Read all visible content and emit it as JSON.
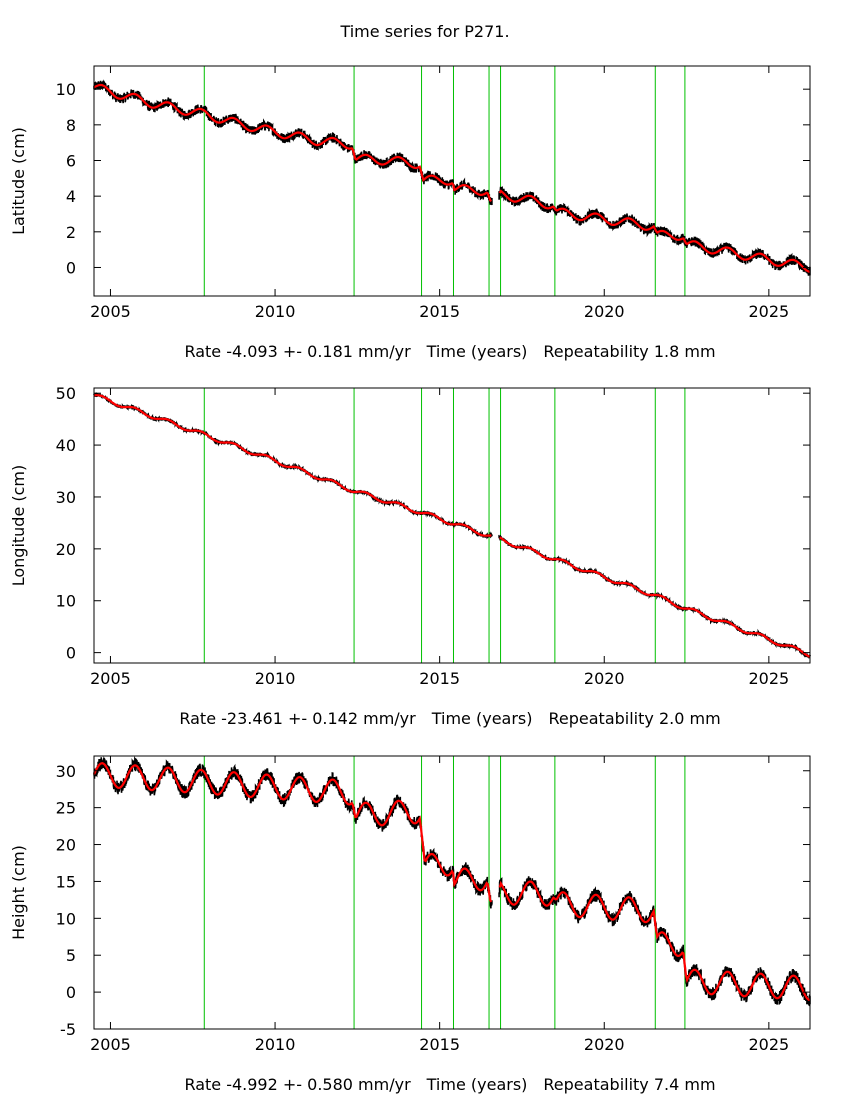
{
  "title": "Time series for P271.",
  "colors": {
    "data": "#000000",
    "model": "#ff0000",
    "event_lines": "#00c000"
  },
  "chart_data": [
    {
      "type": "line",
      "id": "latitude",
      "ylabel": "Latitude (cm)",
      "xlabel": "Time (years)",
      "rate_label": "Rate -4.093 +- 0.181 mm/yr",
      "repeatability_label": "Repeatability 1.8 mm",
      "xlim": [
        2004.5,
        2026.25
      ],
      "ylim": [
        -1.6,
        11.3
      ],
      "xticks": [
        2005,
        2010,
        2015,
        2020,
        2025
      ],
      "yticks": [
        0,
        2,
        4,
        6,
        8,
        10
      ],
      "event_lines": [
        2007.85,
        2012.4,
        2014.45,
        2015.42,
        2016.5,
        2016.85,
        2018.5,
        2021.55,
        2022.45
      ],
      "noise": 0.28,
      "series": [
        {
          "name": "model",
          "points": [
            [
              2004.5,
              10.1
            ],
            [
              2005.5,
              9.6
            ],
            [
              2006.5,
              9.1
            ],
            [
              2007.85,
              8.6
            ],
            [
              2008.8,
              8.1
            ],
            [
              2010,
              7.6
            ],
            [
              2011.3,
              7.1
            ],
            [
              2012.35,
              6.9
            ],
            [
              2012.45,
              6.1
            ],
            [
              2013.5,
              6.0
            ],
            [
              2014.4,
              5.8
            ],
            [
              2014.5,
              4.9
            ],
            [
              2015.4,
              4.9
            ],
            [
              2015.45,
              4.4
            ],
            [
              2016.45,
              4.3
            ],
            [
              2016.55,
              3.6
            ],
            [
              2016.8,
              3.8
            ],
            [
              2016.85,
              4.1
            ],
            [
              2018.45,
              3.5
            ],
            [
              2018.55,
              3.1
            ],
            [
              2021.5,
              2.3
            ],
            [
              2021.6,
              1.8
            ],
            [
              2022.4,
              1.8
            ],
            [
              2022.5,
              1.3
            ],
            [
              2026.25,
              0.0
            ]
          ]
        }
      ]
    },
    {
      "type": "line",
      "id": "longitude",
      "ylabel": "Longitude (cm)",
      "xlabel": "Time (years)",
      "rate_label": "Rate -23.461 +- 0.142 mm/yr",
      "repeatability_label": "Repeatability 2.0 mm",
      "xlim": [
        2004.5,
        2026.25
      ],
      "ylim": [
        -2,
        51
      ],
      "xticks": [
        2005,
        2010,
        2015,
        2020,
        2025
      ],
      "yticks": [
        0,
        10,
        20,
        30,
        40,
        50
      ],
      "event_lines": [
        2007.85,
        2012.4,
        2014.45,
        2015.42,
        2016.5,
        2016.85,
        2018.5,
        2021.55,
        2022.45
      ],
      "noise": 0.35,
      "series": [
        {
          "name": "model",
          "points": [
            [
              2004.5,
              49.6
            ],
            [
              2007.85,
              42
            ],
            [
              2010,
              37
            ],
            [
              2012.4,
              31.2
            ],
            [
              2014.45,
              27
            ],
            [
              2016.85,
              21.8
            ],
            [
              2018.5,
              18
            ],
            [
              2021.55,
              11
            ],
            [
              2022.45,
              8.6
            ],
            [
              2026.25,
              -0.4
            ]
          ]
        }
      ]
    },
    {
      "type": "line",
      "id": "height",
      "ylabel": "Height (cm)",
      "xlabel": "Time (years)",
      "rate_label": "Rate -4.992 +- 0.580 mm/yr",
      "repeatability_label": "Repeatability 7.4 mm",
      "xlim": [
        2004.5,
        2026.25
      ],
      "ylim": [
        -5,
        32
      ],
      "xticks": [
        2005,
        2010,
        2015,
        2020,
        2025
      ],
      "yticks": [
        -5,
        0,
        5,
        10,
        15,
        20,
        25,
        30
      ],
      "event_lines": [
        2007.85,
        2012.4,
        2014.45,
        2015.42,
        2016.5,
        2016.85,
        2018.5,
        2021.55,
        2022.45
      ],
      "noise": 0.9,
      "series": [
        {
          "name": "model",
          "points": [
            [
              2004.5,
              29.5
            ],
            [
              2007.85,
              28.5
            ],
            [
              2010,
              27.8
            ],
            [
              2012.35,
              27
            ],
            [
              2012.45,
              24
            ],
            [
              2014.4,
              24.5
            ],
            [
              2014.55,
              17
            ],
            [
              2015.4,
              17.5
            ],
            [
              2015.45,
              15
            ],
            [
              2016.45,
              15.5
            ],
            [
              2016.55,
              11.5
            ],
            [
              2016.8,
              12
            ],
            [
              2016.85,
              13.5
            ],
            [
              2018.45,
              13.3
            ],
            [
              2018.55,
              12
            ],
            [
              2021.5,
              11
            ],
            [
              2021.6,
              6.5
            ],
            [
              2022.4,
              6.5
            ],
            [
              2022.5,
              1.5
            ],
            [
              2026.25,
              0.5
            ]
          ]
        }
      ]
    }
  ]
}
